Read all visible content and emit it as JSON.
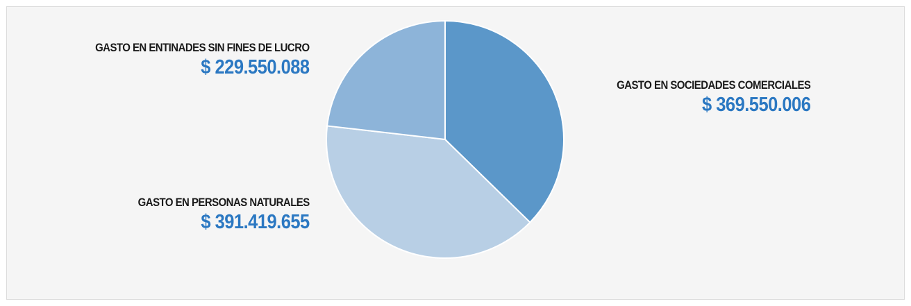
{
  "chart_data": {
    "type": "pie",
    "title": "",
    "start_angle_deg": 0,
    "direction": "clockwise",
    "slices": [
      {
        "label": "GASTO EN SOCIEDADES COMERCIALES",
        "amount_text": "$ 369.550.006",
        "value": 369550006,
        "color": "#5b97c9"
      },
      {
        "label": "GASTO EN PERSONAS NATURALES",
        "amount_text": "$ 391.419.655",
        "value": 391419655,
        "color": "#b8cfe5"
      },
      {
        "label": "GASTO EN ENTINADES SIN FINES DE LUCRO",
        "amount_text": "$ 229.550.088",
        "value": 229550088,
        "color": "#8db4d9"
      }
    ],
    "amount_color": "#2b78c2",
    "legend": "none"
  }
}
